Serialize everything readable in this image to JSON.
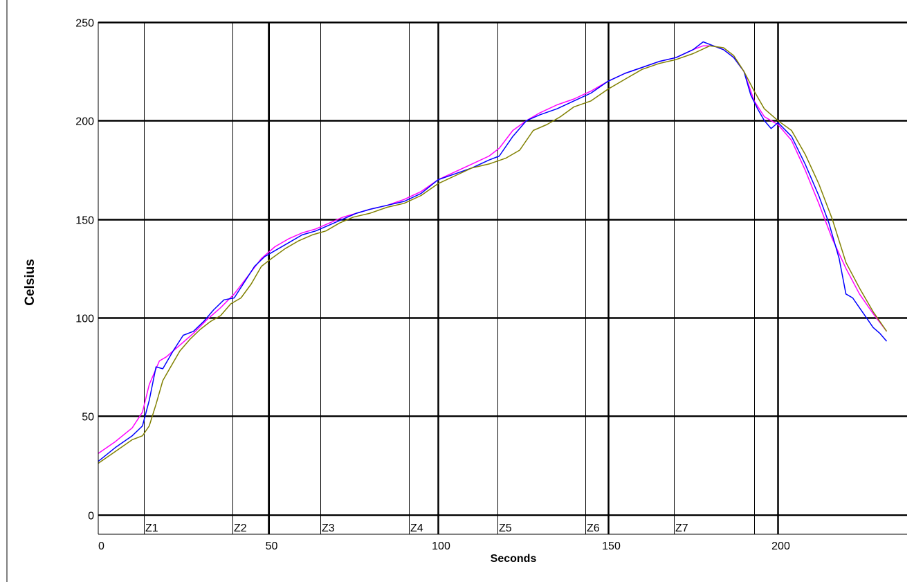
{
  "chart_data": {
    "type": "line",
    "xlabel": "Seconds",
    "ylabel": "Celsius",
    "xlim": [
      0,
      238
    ],
    "ylim": [
      -10,
      250
    ],
    "x_ticks": [
      0,
      50,
      100,
      150,
      200
    ],
    "y_ticks": [
      0,
      50,
      100,
      150,
      200,
      250
    ],
    "grid": true,
    "zones": [
      {
        "label": "Z1",
        "x": 13.4
      },
      {
        "label": "Z2",
        "x": 39.4
      },
      {
        "label": "Z3",
        "x": 65.4
      },
      {
        "label": "Z4",
        "x": 91.4
      },
      {
        "label": "Z5",
        "x": 117.4
      },
      {
        "label": "Z6",
        "x": 143.4
      },
      {
        "label": "Z7",
        "x": 169.4
      }
    ],
    "zone_boundaries": [
      13.4,
      39.4,
      50.2,
      65.4,
      91.4,
      117.4,
      143.4,
      169.4,
      193.0
    ],
    "series": [
      {
        "color": "#ff00ff",
        "x": [
          0,
          5,
          10,
          13,
          15,
          18,
          20,
          24,
          28,
          32,
          36,
          40,
          44,
          48,
          52,
          56,
          60,
          64,
          68,
          72,
          76,
          80,
          85,
          90,
          95,
          100,
          105,
          110,
          115,
          118,
          122,
          126,
          130,
          135,
          140,
          145,
          150,
          155,
          160,
          165,
          170,
          175,
          178,
          181,
          184,
          187,
          190,
          193,
          196,
          200,
          204,
          208,
          212,
          216,
          220,
          224,
          228,
          232
        ],
        "values": [
          31,
          37,
          44,
          52,
          66,
          78,
          80,
          86,
          92,
          99,
          105,
          112,
          121,
          130,
          136,
          140,
          143,
          145,
          148,
          151,
          153,
          155,
          157,
          160,
          164,
          170,
          174,
          178,
          182,
          186,
          195,
          200,
          204,
          208,
          211,
          215,
          220,
          224,
          227,
          230,
          232,
          236,
          238,
          238,
          236,
          232,
          225,
          210,
          202,
          198,
          190,
          175,
          158,
          140,
          125,
          112,
          102,
          93
        ]
      },
      {
        "color": "#0000ff",
        "x": [
          0,
          5,
          10,
          13,
          15,
          17,
          19,
          22,
          25,
          28,
          31,
          34,
          37,
          40,
          43,
          46,
          49,
          52,
          56,
          60,
          64,
          68,
          72,
          76,
          80,
          85,
          90,
          95,
          100,
          105,
          110,
          115,
          118,
          122,
          126,
          130,
          135,
          140,
          145,
          150,
          155,
          160,
          165,
          170,
          175,
          178,
          181,
          184,
          187,
          190,
          192,
          194,
          196,
          198,
          200,
          204,
          208,
          212,
          215,
          218,
          220,
          222,
          224,
          226,
          228,
          230,
          232
        ],
        "values": [
          27,
          34,
          40,
          45,
          58,
          75,
          74,
          83,
          91,
          93,
          98,
          104,
          109,
          110,
          118,
          126,
          131,
          134,
          138,
          142,
          144,
          147,
          150,
          153,
          155,
          157,
          159,
          163,
          170,
          173,
          176,
          180,
          182,
          192,
          200,
          203,
          206,
          210,
          214,
          220,
          224,
          227,
          230,
          232,
          236,
          240,
          238,
          236,
          232,
          225,
          213,
          206,
          200,
          196,
          199,
          192,
          178,
          162,
          148,
          130,
          112,
          110,
          105,
          100,
          95,
          92,
          88
        ]
      },
      {
        "color": "#808000",
        "x": [
          0,
          5,
          10,
          13,
          15,
          17,
          19,
          21,
          24,
          27,
          30,
          33,
          36,
          39,
          42,
          45,
          48,
          51,
          55,
          59,
          63,
          67,
          71,
          75,
          80,
          85,
          90,
          95,
          100,
          105,
          110,
          115,
          120,
          124,
          128,
          132,
          136,
          140,
          145,
          150,
          155,
          160,
          165,
          170,
          175,
          180,
          184,
          187,
          190,
          193,
          196,
          200,
          204,
          208,
          212,
          216,
          220,
          224,
          228,
          232
        ],
        "values": [
          26,
          32,
          38,
          40,
          45,
          56,
          68,
          74,
          83,
          89,
          94,
          98,
          101,
          107,
          110,
          117,
          126,
          130,
          135,
          139,
          142,
          144,
          148,
          151,
          153,
          156,
          158,
          162,
          168,
          172,
          176,
          178,
          181,
          185,
          195,
          198,
          202,
          207,
          210,
          216,
          221,
          226,
          229,
          231,
          234,
          238,
          237,
          233,
          225,
          215,
          206,
          200,
          195,
          183,
          168,
          150,
          128,
          115,
          103,
          93
        ]
      }
    ]
  }
}
